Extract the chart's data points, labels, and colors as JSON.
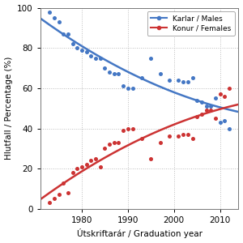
{
  "males_x": [
    1973,
    1974,
    1975,
    1976,
    1977,
    1978,
    1979,
    1980,
    1981,
    1982,
    1983,
    1984,
    1985,
    1986,
    1987,
    1988,
    1989,
    1990,
    1991,
    1993,
    1995,
    1997,
    1999,
    2001,
    2002,
    2003,
    2004,
    2005,
    2006,
    2007,
    2008,
    2009,
    2010,
    2011,
    2012
  ],
  "males_y": [
    98,
    95,
    93,
    87,
    87,
    82,
    80,
    79,
    78,
    76,
    75,
    75,
    70,
    68,
    67,
    67,
    61,
    60,
    60,
    65,
    75,
    67,
    64,
    64,
    63,
    63,
    65,
    54,
    53,
    51,
    51,
    55,
    43,
    44,
    40
  ],
  "females_x": [
    1973,
    1974,
    1975,
    1976,
    1977,
    1978,
    1979,
    1980,
    1981,
    1982,
    1983,
    1984,
    1985,
    1986,
    1987,
    1988,
    1989,
    1990,
    1991,
    1993,
    1995,
    1997,
    1999,
    2001,
    2002,
    2003,
    2004,
    2005,
    2006,
    2007,
    2008,
    2009,
    2010,
    2011,
    2012
  ],
  "females_y": [
    3,
    5,
    7,
    13,
    8,
    18,
    20,
    21,
    22,
    24,
    25,
    21,
    30,
    32,
    33,
    33,
    39,
    40,
    40,
    35,
    25,
    33,
    36,
    36,
    37,
    37,
    35,
    46,
    47,
    49,
    49,
    45,
    57,
    56,
    60
  ],
  "male_color": "#4477C4",
  "female_color": "#CC3333",
  "bg_color": "#ffffff",
  "plot_bg_color": "#ffffff",
  "xlabel": "Útskriftarár / Graduation year",
  "ylabel": "Hlutfall / Percentage (%)",
  "xlim": [
    1971,
    2014
  ],
  "ylim": [
    0,
    100
  ],
  "xticks": [
    1980,
    1990,
    2000,
    2010
  ],
  "yticks": [
    0,
    20,
    40,
    60,
    80,
    100
  ],
  "male_label": "Karlar / Males",
  "female_label": "Konur / Females"
}
